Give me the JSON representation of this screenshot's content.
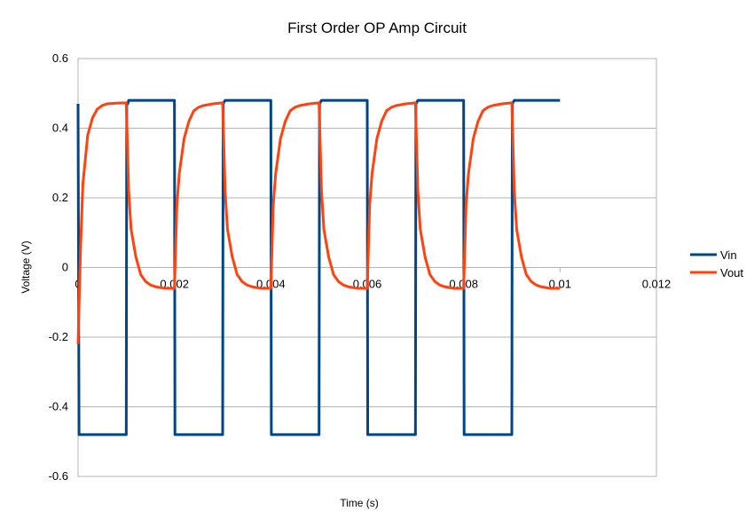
{
  "chart_data": {
    "type": "line",
    "title": "First Order OP Amp Circuit",
    "xlabel": "Time (s)",
    "ylabel": "Voltage (V)",
    "xlim": [
      0,
      0.012
    ],
    "ylim": [
      -0.6,
      0.6
    ],
    "x_ticks": [
      0,
      0.002,
      0.004,
      0.006,
      0.008,
      0.01,
      0.012
    ],
    "x_tick_labels": [
      "0",
      "0.002",
      "0.004",
      "0.006",
      "0.008",
      "0.01",
      "0.012"
    ],
    "y_ticks": [
      -0.6,
      -0.4,
      -0.2,
      0,
      0.2,
      0.4,
      0.6
    ],
    "y_tick_labels": [
      "-0.6",
      "-0.4",
      "-0.2",
      "0",
      "0.2",
      "0.4",
      "0.6"
    ],
    "grid": "horizontal",
    "legend_position": "right",
    "x_axis_at_zero": true,
    "series": [
      {
        "name": "Vin",
        "color": "#004586",
        "points": [
          [
            0,
            0.47
          ],
          [
            2e-05,
            -0.48
          ],
          [
            0.001,
            -0.48
          ],
          [
            0.00101,
            0.47
          ],
          [
            0.00103,
            0.47
          ],
          [
            0.00105,
            0.48
          ],
          [
            0.002,
            0.48
          ],
          [
            0.00201,
            -0.48
          ],
          [
            0.003,
            -0.48
          ],
          [
            0.00301,
            0.47
          ],
          [
            0.00305,
            0.48
          ],
          [
            0.004,
            0.48
          ],
          [
            0.00401,
            -0.48
          ],
          [
            0.005,
            -0.48
          ],
          [
            0.00501,
            0.47
          ],
          [
            0.00505,
            0.48
          ],
          [
            0.006,
            0.48
          ],
          [
            0.00601,
            -0.48
          ],
          [
            0.007,
            -0.48
          ],
          [
            0.00701,
            0.47
          ],
          [
            0.00705,
            0.48
          ],
          [
            0.008,
            0.48
          ],
          [
            0.00801,
            -0.48
          ],
          [
            0.009,
            -0.48
          ],
          [
            0.00901,
            0.47
          ],
          [
            0.00905,
            0.48
          ],
          [
            0.01,
            0.48
          ]
        ]
      },
      {
        "name": "Vout",
        "color": "#ff420e",
        "points": [
          [
            0,
            -0.22
          ],
          [
            5e-05,
            0.05
          ],
          [
            0.0001,
            0.24
          ],
          [
            0.0002,
            0.38
          ],
          [
            0.0003,
            0.43
          ],
          [
            0.0004,
            0.455
          ],
          [
            0.0005,
            0.465
          ],
          [
            0.0006,
            0.47
          ],
          [
            0.0008,
            0.472
          ],
          [
            0.001,
            0.473
          ],
          [
            0.00105,
            0.22
          ],
          [
            0.0011,
            0.11
          ],
          [
            0.0012,
            0.03
          ],
          [
            0.0013,
            -0.02
          ],
          [
            0.0014,
            -0.04
          ],
          [
            0.0015,
            -0.05
          ],
          [
            0.0016,
            -0.055
          ],
          [
            0.0018,
            -0.06
          ],
          [
            0.002,
            -0.06
          ],
          [
            0.00205,
            0.18
          ],
          [
            0.0021,
            0.27
          ],
          [
            0.0022,
            0.37
          ],
          [
            0.0023,
            0.42
          ],
          [
            0.0024,
            0.45
          ],
          [
            0.0025,
            0.46
          ],
          [
            0.0026,
            0.465
          ],
          [
            0.0028,
            0.47
          ],
          [
            0.003,
            0.473
          ],
          [
            0.00305,
            0.22
          ],
          [
            0.0031,
            0.11
          ],
          [
            0.0032,
            0.03
          ],
          [
            0.0033,
            -0.02
          ],
          [
            0.0034,
            -0.04
          ],
          [
            0.0035,
            -0.05
          ],
          [
            0.0036,
            -0.055
          ],
          [
            0.0038,
            -0.06
          ],
          [
            0.004,
            -0.06
          ],
          [
            0.00405,
            0.18
          ],
          [
            0.0041,
            0.27
          ],
          [
            0.0042,
            0.37
          ],
          [
            0.0043,
            0.42
          ],
          [
            0.0044,
            0.45
          ],
          [
            0.0045,
            0.46
          ],
          [
            0.0046,
            0.465
          ],
          [
            0.0048,
            0.47
          ],
          [
            0.005,
            0.473
          ],
          [
            0.00505,
            0.22
          ],
          [
            0.0051,
            0.11
          ],
          [
            0.0052,
            0.03
          ],
          [
            0.0053,
            -0.02
          ],
          [
            0.0054,
            -0.04
          ],
          [
            0.0055,
            -0.05
          ],
          [
            0.0056,
            -0.055
          ],
          [
            0.0058,
            -0.06
          ],
          [
            0.006,
            -0.06
          ],
          [
            0.00605,
            0.18
          ],
          [
            0.0061,
            0.27
          ],
          [
            0.0062,
            0.37
          ],
          [
            0.0063,
            0.42
          ],
          [
            0.0064,
            0.45
          ],
          [
            0.0065,
            0.46
          ],
          [
            0.0066,
            0.465
          ],
          [
            0.0068,
            0.47
          ],
          [
            0.007,
            0.473
          ],
          [
            0.00705,
            0.22
          ],
          [
            0.0071,
            0.11
          ],
          [
            0.0072,
            0.03
          ],
          [
            0.0073,
            -0.02
          ],
          [
            0.0074,
            -0.04
          ],
          [
            0.0075,
            -0.05
          ],
          [
            0.0076,
            -0.055
          ],
          [
            0.0078,
            -0.06
          ],
          [
            0.008,
            -0.06
          ],
          [
            0.00805,
            0.18
          ],
          [
            0.0081,
            0.27
          ],
          [
            0.0082,
            0.37
          ],
          [
            0.0083,
            0.42
          ],
          [
            0.0084,
            0.45
          ],
          [
            0.0085,
            0.46
          ],
          [
            0.0086,
            0.465
          ],
          [
            0.0088,
            0.47
          ],
          [
            0.009,
            0.473
          ],
          [
            0.00905,
            0.22
          ],
          [
            0.0091,
            0.11
          ],
          [
            0.0092,
            0.03
          ],
          [
            0.0093,
            -0.02
          ],
          [
            0.0094,
            -0.04
          ],
          [
            0.0095,
            -0.05
          ],
          [
            0.0096,
            -0.055
          ],
          [
            0.0098,
            -0.06
          ],
          [
            0.01,
            -0.06
          ]
        ]
      }
    ]
  }
}
